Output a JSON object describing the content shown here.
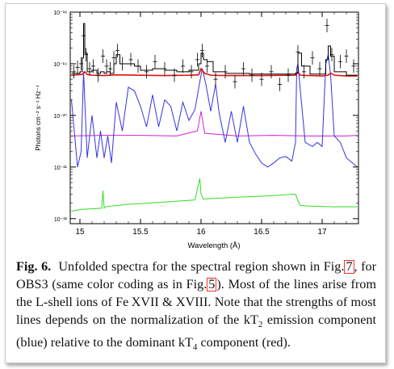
{
  "figure": {
    "label": "Fig. 6.",
    "caption_part1": "Unfolded spectra for the spectral region shown in Fig.",
    "ref1": "7",
    "caption_part2": ", for OBS3 (same color coding as in Fig.",
    "ref2": "5",
    "caption_part3": "). Most of the lines arise from the L-shell ions of Fe XVII & XVIII. Note that the strengths of most lines depends on the normalization of the kT",
    "sub1": "2",
    "caption_part4": " emission component (blue) relative to the dominant kT",
    "sub2": "4",
    "caption_part5": " component (red)."
  },
  "chart_data": {
    "type": "line",
    "xlabel": "Wavelength (Å)",
    "ylabel": "Photons cm⁻² s⁻¹ Hz⁻¹",
    "xlim": [
      14.92,
      17.3
    ],
    "ylim": [
      8e-23,
      1e-18
    ],
    "yscale": "log",
    "x_ticks": [
      "15",
      "15.5",
      "16",
      "16.5",
      "17"
    ],
    "x_tick_values": [
      15,
      15.5,
      16,
      16.5,
      17
    ],
    "y_ticks": [
      "10⁻¹⁸",
      "10⁻¹⁹",
      "10⁻²⁰",
      "10⁻²¹",
      "10⁻²²"
    ],
    "y_tick_values": [
      1e-18,
      1e-19,
      1e-20,
      1e-21,
      1e-22
    ],
    "colors": {
      "data": "#000000",
      "total": "#000000",
      "kT4": "#e01010",
      "kT2": "#3535e0",
      "magenta": "#d020d0",
      "green": "#33dd22"
    },
    "series": [
      {
        "key": "kT2",
        "x": [
          14.93,
          14.98,
          15.01,
          15.03,
          15.06,
          15.1,
          15.14,
          15.17,
          15.2,
          15.23,
          15.26,
          15.3,
          15.35,
          15.4,
          15.45,
          15.5,
          15.55,
          15.6,
          15.65,
          15.7,
          15.75,
          15.8,
          15.85,
          15.9,
          15.95,
          15.99,
          16.01,
          16.04,
          16.08,
          16.12,
          16.15,
          16.2,
          16.25,
          16.3,
          16.35,
          16.4,
          16.45,
          16.5,
          16.55,
          16.6,
          16.65,
          16.7,
          16.75,
          16.78,
          16.79,
          16.8,
          16.82,
          16.86,
          16.92,
          16.96,
          17.0,
          17.03,
          17.05,
          17.07,
          17.1,
          17.15,
          17.2,
          17.25,
          17.29
        ],
        "y": [
          2e-20,
          1e-21,
          2e-21,
          7e-20,
          1.5e-21,
          1e-20,
          1.5e-21,
          5e-21,
          1.5e-21,
          4e-21,
          1.2e-21,
          1.8e-20,
          5e-21,
          3.5e-20,
          3e-20,
          1.5e-20,
          6e-21,
          2.5e-20,
          6e-21,
          2e-20,
          1.5e-20,
          5e-21,
          1.8e-20,
          8e-21,
          1.3e-20,
          4.5e-20,
          8e-20,
          4e-20,
          1.2e-20,
          4e-20,
          1.1e-20,
          3e-21,
          1.2e-20,
          3e-21,
          1.5e-20,
          3e-21,
          1.8e-21,
          1.2e-21,
          1e-21,
          1.2e-21,
          1.5e-21,
          1.6e-21,
          1.3e-21,
          3e-21,
          8e-20,
          1e-19,
          3e-20,
          3e-21,
          2.5e-21,
          3e-21,
          2.5e-21,
          1e-19,
          1.5e-19,
          6e-20,
          4e-21,
          3e-21,
          1.5e-21,
          1.2e-21,
          1e-21
        ]
      },
      {
        "key": "kT4",
        "x": [
          14.93,
          15.02,
          15.04,
          15.06,
          15.1,
          15.2,
          15.3,
          15.5,
          15.7,
          15.9,
          15.98,
          16.0,
          16.03,
          16.08,
          16.2,
          16.5,
          16.78,
          16.8,
          16.82,
          16.9,
          17.0,
          17.05,
          17.07,
          17.1,
          17.2,
          17.29
        ],
        "y": [
          6e-20,
          6.2e-20,
          7e-20,
          6.2e-20,
          6e-20,
          5.9e-20,
          6.1e-20,
          6e-20,
          5.9e-20,
          6e-20,
          6.1e-20,
          8e-20,
          6.5e-20,
          6e-20,
          5.9e-20,
          5.9e-20,
          6e-20,
          6.8e-20,
          6e-20,
          5.9e-20,
          5.8e-20,
          6e-20,
          6.6e-20,
          6e-20,
          5.8e-20,
          5.8e-20
        ]
      },
      {
        "key": "magenta",
        "x": [
          14.93,
          15.2,
          15.5,
          15.8,
          15.97,
          16.0,
          16.03,
          16.3,
          16.6,
          16.9,
          17.2,
          17.29
        ],
        "y": [
          4e-21,
          4.1e-21,
          4.1e-21,
          4e-21,
          5e-21,
          1.2e-20,
          4.5e-21,
          4e-21,
          4.1e-21,
          4e-21,
          4e-21,
          4.1e-21
        ]
      },
      {
        "key": "green",
        "x": [
          14.93,
          15.0,
          15.1,
          15.18,
          15.19,
          15.2,
          15.21,
          15.4,
          15.7,
          15.95,
          15.99,
          16.0,
          16.02,
          16.3,
          16.6,
          16.78,
          16.8,
          16.82,
          16.9,
          17.1,
          17.29
        ],
        "y": [
          1.4e-22,
          1.5e-22,
          1.55e-22,
          1.6e-22,
          3.5e-22,
          1.6e-22,
          1.7e-22,
          1.9e-22,
          2.1e-22,
          2.3e-22,
          6e-22,
          3e-22,
          2.4e-22,
          2.6e-22,
          2.8e-22,
          3e-22,
          2.2e-22,
          1.8e-22,
          1.75e-22,
          1.7e-22,
          1.7e-22
        ]
      },
      {
        "key": "total",
        "x": [
          14.93,
          14.98,
          15.0,
          15.02,
          15.03,
          15.04,
          15.06,
          15.1,
          15.14,
          15.17,
          15.2,
          15.22,
          15.25,
          15.28,
          15.3,
          15.33,
          15.4,
          15.45,
          15.5,
          15.6,
          15.7,
          15.8,
          15.9,
          15.98,
          16.0,
          16.02,
          16.05,
          16.1,
          16.2,
          16.4,
          16.6,
          16.78,
          16.8,
          16.83,
          16.9,
          17.0,
          17.03,
          17.05,
          17.07,
          17.1,
          17.2,
          17.29
        ],
        "y": [
          6.5e-20,
          6.5e-20,
          7e-20,
          1.3e-19,
          6e-19,
          1.6e-19,
          7e-20,
          7.5e-20,
          6.5e-20,
          7e-20,
          6.5e-20,
          7e-20,
          6.5e-20,
          1e-19,
          1.5e-19,
          1e-19,
          1e-19,
          9e-20,
          7.5e-20,
          8e-20,
          7.5e-20,
          7e-20,
          7.5e-20,
          1e-19,
          1.6e-19,
          1.2e-19,
          1.1e-19,
          7e-20,
          6.5e-20,
          6.3e-20,
          6.3e-20,
          6.6e-20,
          1.6e-19,
          9e-20,
          6.3e-20,
          6.3e-20,
          1.2e-19,
          2.2e-19,
          1.4e-19,
          7e-20,
          6e-20,
          6e-20
        ]
      },
      {
        "key": "data",
        "x": [
          14.95,
          14.98,
          15.01,
          15.03,
          15.05,
          15.08,
          15.11,
          15.15,
          15.19,
          15.22,
          15.25,
          15.28,
          15.31,
          15.35,
          15.42,
          15.48,
          15.55,
          15.62,
          15.7,
          15.78,
          15.85,
          15.92,
          15.97,
          16.01,
          16.05,
          16.12,
          16.2,
          16.28,
          16.35,
          16.42,
          16.5,
          16.58,
          16.65,
          16.72,
          16.8,
          16.85,
          16.92,
          16.98,
          17.04,
          17.08,
          17.15,
          17.2,
          17.26
        ],
        "y": [
          7e-20,
          8.5e-20,
          1e-19,
          3.5e-19,
          1.5e-19,
          8e-20,
          9e-20,
          6e-20,
          1.4e-19,
          9e-20,
          8e-20,
          1.3e-19,
          1.8e-19,
          1e-19,
          1.2e-19,
          9e-20,
          7e-20,
          1.1e-19,
          8e-20,
          6e-20,
          9e-20,
          7e-20,
          1.2e-19,
          1.8e-19,
          9e-20,
          5e-20,
          7e-20,
          4.5e-20,
          8e-20,
          6e-20,
          5e-20,
          7e-20,
          4e-20,
          6e-20,
          1.7e-19,
          7e-20,
          1.3e-19,
          8e-20,
          5.5e-19,
          1.5e-19,
          1.1e-19,
          1.4e-19,
          9e-20
        ]
      }
    ]
  }
}
